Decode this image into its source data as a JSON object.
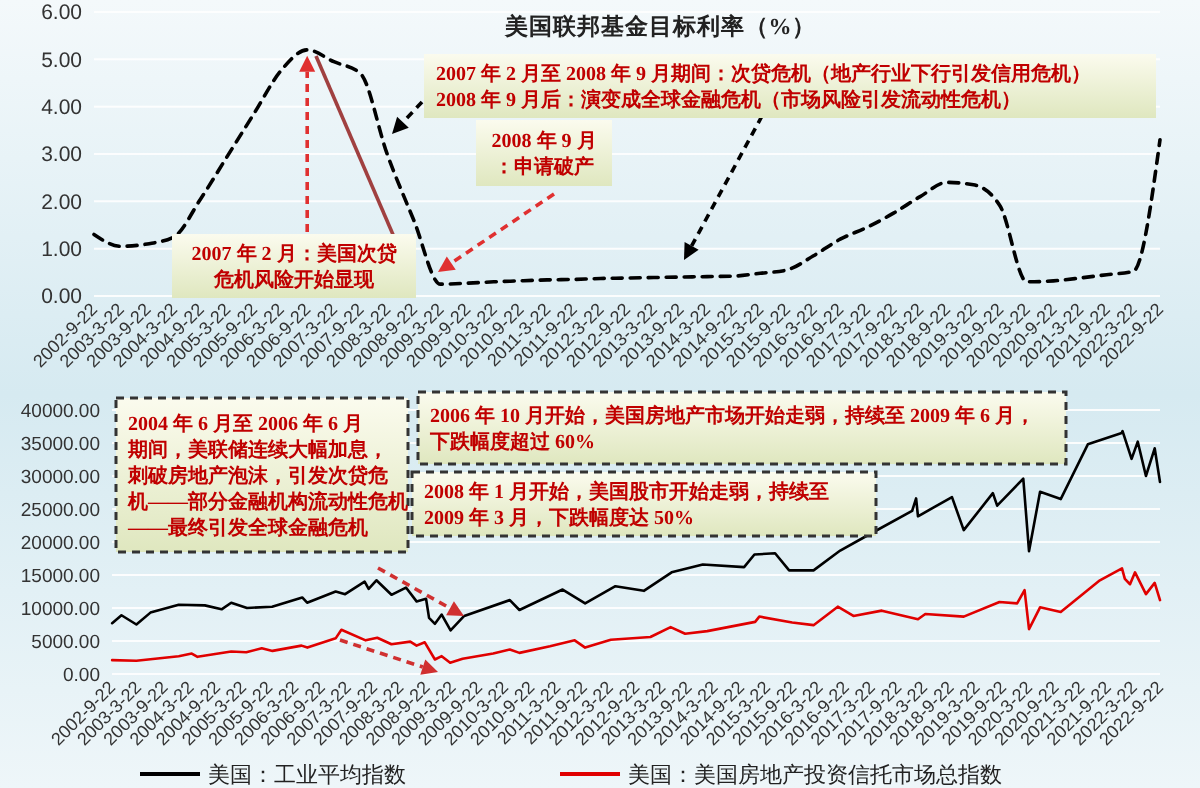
{
  "chart_data": [
    {
      "type": "line",
      "title": "美国联邦基金目标利率（%）",
      "categories": [
        "2002-9-22",
        "2003-3-22",
        "2003-9-22",
        "2004-3-22",
        "2004-9-22",
        "2005-3-22",
        "2005-9-22",
        "2006-3-22",
        "2006-9-22",
        "2007-3-22",
        "2007-9-22",
        "2008-3-22",
        "2008-9-22",
        "2009-3-22",
        "2009-9-22",
        "2010-3-22",
        "2010-9-22",
        "2011-3-22",
        "2011-9-22",
        "2012-3-22",
        "2012-9-22",
        "2013-3-22",
        "2013-9-22",
        "2014-3-22",
        "2014-9-22",
        "2015-3-22",
        "2015-9-22",
        "2016-3-22",
        "2016-9-22",
        "2017-3-22",
        "2017-9-22",
        "2018-3-22",
        "2018-9-22",
        "2019-3-22",
        "2019-9-22",
        "2020-3-22",
        "2020-9-22",
        "2021-3-22",
        "2021-9-22",
        "2022-3-22",
        "2022-9-22"
      ],
      "series": [
        {
          "color": "#000000",
          "values": [
            1.3,
            1.05,
            1.1,
            1.25,
            2.05,
            2.95,
            3.85,
            4.75,
            5.2,
            4.95,
            4.7,
            3.0,
            1.6,
            0.25,
            0.27,
            0.3,
            0.32,
            0.34,
            0.35,
            0.37,
            0.38,
            0.39,
            0.4,
            0.41,
            0.42,
            0.48,
            0.55,
            0.85,
            1.2,
            1.45,
            1.75,
            2.1,
            2.4,
            2.35,
            1.9,
            0.3,
            0.32,
            0.38,
            0.45,
            0.52,
            3.3
          ]
        }
      ],
      "line_style": "dashed",
      "ylim": [
        0,
        6
      ],
      "yticks": [
        {
          "value": 0,
          "label": "0.00"
        },
        {
          "value": 1,
          "label": "1.00"
        },
        {
          "value": 2,
          "label": "2.00"
        },
        {
          "value": 3,
          "label": "3.00"
        },
        {
          "value": 4,
          "label": "4.00"
        },
        {
          "value": 5,
          "label": "5.00"
        },
        {
          "value": 6,
          "label": "6.00"
        }
      ],
      "grid": "y",
      "annotations": [
        "2007 年 2 月至 2008 年 9 月期间：次贷危机（地产行业下行引发信用危机）",
        "2008 年 9 月后：演变成全球金融危机（市场风险引发流动性危机）",
        "2008 年 9 月：申请破产",
        {
          "text": "2007 年 2 月：美国次贷危机风险开始显现",
          "x": "2006-9-22",
          "y": 5.2
        }
      ]
    },
    {
      "type": "line",
      "xlim": [
        "2002-09-22",
        "2022-09-22"
      ],
      "xticks": [
        {
          "value": "2002-09-22",
          "label": "2002-9-22"
        },
        {
          "value": "2003-03-22",
          "label": "2003-3-22"
        },
        {
          "value": "2003-09-22",
          "label": "2003-9-22"
        },
        {
          "value": "2004-03-22",
          "label": "2004-3-22"
        },
        {
          "value": "2004-09-22",
          "label": "2004-9-22"
        },
        {
          "value": "2005-03-22",
          "label": "2005-3-22"
        },
        {
          "value": "2005-09-22",
          "label": "2005-9-22"
        },
        {
          "value": "2006-03-22",
          "label": "2006-3-22"
        },
        {
          "value": "2006-09-22",
          "label": "2006-9-22"
        },
        {
          "value": "2007-03-22",
          "label": "2007-3-22"
        },
        {
          "value": "2007-09-22",
          "label": "2007-9-22"
        },
        {
          "value": "2008-03-22",
          "label": "2008-3-22"
        },
        {
          "value": "2008-09-22",
          "label": "2008-9-22"
        },
        {
          "value": "2009-03-22",
          "label": "2009-3-22"
        },
        {
          "value": "2009-09-22",
          "label": "2009-9-22"
        },
        {
          "value": "2010-03-22",
          "label": "2010-3-22"
        },
        {
          "value": "2010-09-22",
          "label": "2010-9-22"
        },
        {
          "value": "2011-03-22",
          "label": "2011-3-22"
        },
        {
          "value": "2011-09-22",
          "label": "2011-9-22"
        },
        {
          "value": "2012-03-22",
          "label": "2012-3-22"
        },
        {
          "value": "2012-09-22",
          "label": "2012-9-22"
        },
        {
          "value": "2013-03-22",
          "label": "2013-3-22"
        },
        {
          "value": "2013-09-22",
          "label": "2013-9-22"
        },
        {
          "value": "2014-03-22",
          "label": "2014-3-22"
        },
        {
          "value": "2014-09-22",
          "label": "2014-9-22"
        },
        {
          "value": "2015-03-22",
          "label": "2015-3-22"
        },
        {
          "value": "2015-09-22",
          "label": "2015-9-22"
        },
        {
          "value": "2016-03-22",
          "label": "2016-3-22"
        },
        {
          "value": "2016-09-22",
          "label": "2016-9-22"
        },
        {
          "value": "2017-03-22",
          "label": "2017-3-22"
        },
        {
          "value": "2017-09-22",
          "label": "2017-9-22"
        },
        {
          "value": "2018-03-22",
          "label": "2018-3-22"
        },
        {
          "value": "2018-09-22",
          "label": "2018-9-22"
        },
        {
          "value": "2019-03-22",
          "label": "2019-3-22"
        },
        {
          "value": "2019-09-22",
          "label": "2019-9-22"
        },
        {
          "value": "2020-03-22",
          "label": "2020-3-22"
        },
        {
          "value": "2020-09-22",
          "label": "2020-9-22"
        },
        {
          "value": "2021-03-22",
          "label": "2021-3-22"
        },
        {
          "value": "2021-09-22",
          "label": "2021-9-22"
        },
        {
          "value": "2022-03-22",
          "label": "2022-3-22"
        },
        {
          "value": "2022-09-22",
          "label": "2022-9-22"
        }
      ],
      "series": [
        {
          "name": "美国：工业平均指数",
          "color": "#000000",
          "x": [
            "2002-09-23",
            "2002-11-27",
            "2003-03-11",
            "2003-06-17",
            "2003-12-31",
            "2004-06-30",
            "2004-10-25",
            "2004-12-31",
            "2005-04-20",
            "2005-10-12",
            "2006-05-10",
            "2006-06-13",
            "2006-12-29",
            "2007-03-05",
            "2007-07-19",
            "2007-08-16",
            "2007-10-09",
            "2008-01-22",
            "2008-05-02",
            "2008-07-15",
            "2008-09-19",
            "2008-10-10",
            "2008-11-20",
            "2009-01-06",
            "2009-03-09",
            "2009-06-12",
            "2010-04-26",
            "2010-07-02",
            "2011-04-29",
            "2011-10-03",
            "2012-05-01",
            "2012-11-15",
            "2013-05-28",
            "2013-12-31",
            "2014-10-15",
            "2014-12-26",
            "2015-05-19",
            "2015-08-25",
            "2016-02-11",
            "2016-08-15",
            "2017-03-01",
            "2017-12-29",
            "2018-01-26",
            "2018-02-08",
            "2018-10-03",
            "2018-12-24",
            "2019-07-15",
            "2019-08-14",
            "2020-02-12",
            "2020-03-23",
            "2020-06-08",
            "2020-10-30",
            "2021-05-07",
            "2021-12-29",
            "2022-01-04",
            "2022-03-08",
            "2022-04-20",
            "2022-06-16",
            "2022-08-16",
            "2022-09-22"
          ],
          "values": [
            7700,
            8900,
            7500,
            9300,
            10500,
            10400,
            9800,
            10800,
            10000,
            10200,
            11600,
            10800,
            12500,
            12100,
            14000,
            12900,
            14200,
            12000,
            13100,
            11000,
            11400,
            8500,
            7600,
            9000,
            6600,
            8800,
            11200,
            9700,
            12800,
            10700,
            13300,
            12600,
            15400,
            16600,
            16200,
            18100,
            18300,
            15700,
            15700,
            18700,
            21100,
            24700,
            26600,
            23900,
            26800,
            21800,
            27400,
            25500,
            29600,
            18600,
            27600,
            26500,
            34800,
            36500,
            36800,
            32600,
            35200,
            30000,
            34200,
            29100
          ]
        },
        {
          "name": "美国：美国房地产投资信托市场总指数",
          "color": "#e00000",
          "x": [
            "2002-09-23",
            "2003-03-11",
            "2003-12-31",
            "2004-03-31",
            "2004-05-10",
            "2004-12-31",
            "2005-04-15",
            "2005-08-01",
            "2005-10-15",
            "2006-05-05",
            "2006-06-15",
            "2006-12-29",
            "2007-02-07",
            "2007-07-26",
            "2007-10-15",
            "2008-01-22",
            "2008-06-01",
            "2008-07-15",
            "2008-09-10",
            "2008-11-20",
            "2009-01-06",
            "2009-03-06",
            "2009-06-01",
            "2009-12-31",
            "2010-04-26",
            "2010-07-02",
            "2011-01-31",
            "2011-07-22",
            "2011-10-03",
            "2012-03-30",
            "2012-12-31",
            "2013-05-21",
            "2013-08-30",
            "2014-01-31",
            "2014-12-31",
            "2015-01-29",
            "2015-09-15",
            "2016-02-11",
            "2016-07-29",
            "2016-11-15",
            "2017-06-01",
            "2018-02-08",
            "2018-03-31",
            "2018-12-24",
            "2019-08-30",
            "2019-12-31",
            "2020-02-21",
            "2020-03-23",
            "2020-06-08",
            "2020-10-30",
            "2021-07-30",
            "2021-12-31",
            "2022-01-20",
            "2022-02-25",
            "2022-04-01",
            "2022-06-16",
            "2022-08-16",
            "2022-09-22"
          ],
          "values": [
            2100,
            2000,
            2700,
            3100,
            2600,
            3400,
            3300,
            3900,
            3500,
            4300,
            4000,
            5400,
            6700,
            5100,
            5500,
            4500,
            4900,
            4300,
            4800,
            2200,
            2700,
            1700,
            2300,
            3100,
            3700,
            3200,
            4200,
            5100,
            4000,
            5200,
            5600,
            7100,
            6100,
            6500,
            7900,
            8700,
            7800,
            7400,
            10200,
            8800,
            9600,
            8300,
            9100,
            8700,
            10900,
            10700,
            12700,
            6800,
            10100,
            9400,
            14200,
            16000,
            14400,
            13600,
            15400,
            12100,
            13800,
            11200
          ]
        }
      ],
      "ylim": [
        0,
        40000
      ],
      "yticks": [
        {
          "value": 0,
          "label": "0.00"
        },
        {
          "value": 5000,
          "label": "5000.00"
        },
        {
          "value": 10000,
          "label": "10000.00"
        },
        {
          "value": 15000,
          "label": "15000.00"
        },
        {
          "value": 20000,
          "label": "20000.00"
        },
        {
          "value": 25000,
          "label": "25000.00"
        },
        {
          "value": 30000,
          "label": "30000.00"
        },
        {
          "value": 35000,
          "label": "35000.00"
        },
        {
          "value": 40000,
          "label": "40000.00"
        }
      ],
      "grid": "y",
      "legend": "bottom",
      "annotations": [
        "2004 年 6 月至 2006 年 6 月期间，美联储连续大幅加息，刺破房地产泡沫，引发次贷危机——部分金融机构流动性危机——最终引发全球金融危机",
        "2006 年 10 月开始，美国房地产市场开始走弱，持续至 2009 年 6 月，下跌幅度超过 60%",
        "2008 年 1 月开始，美国股市开始走弱，持续至 2009 年 3 月，下跌幅度达 50%"
      ]
    }
  ]
}
